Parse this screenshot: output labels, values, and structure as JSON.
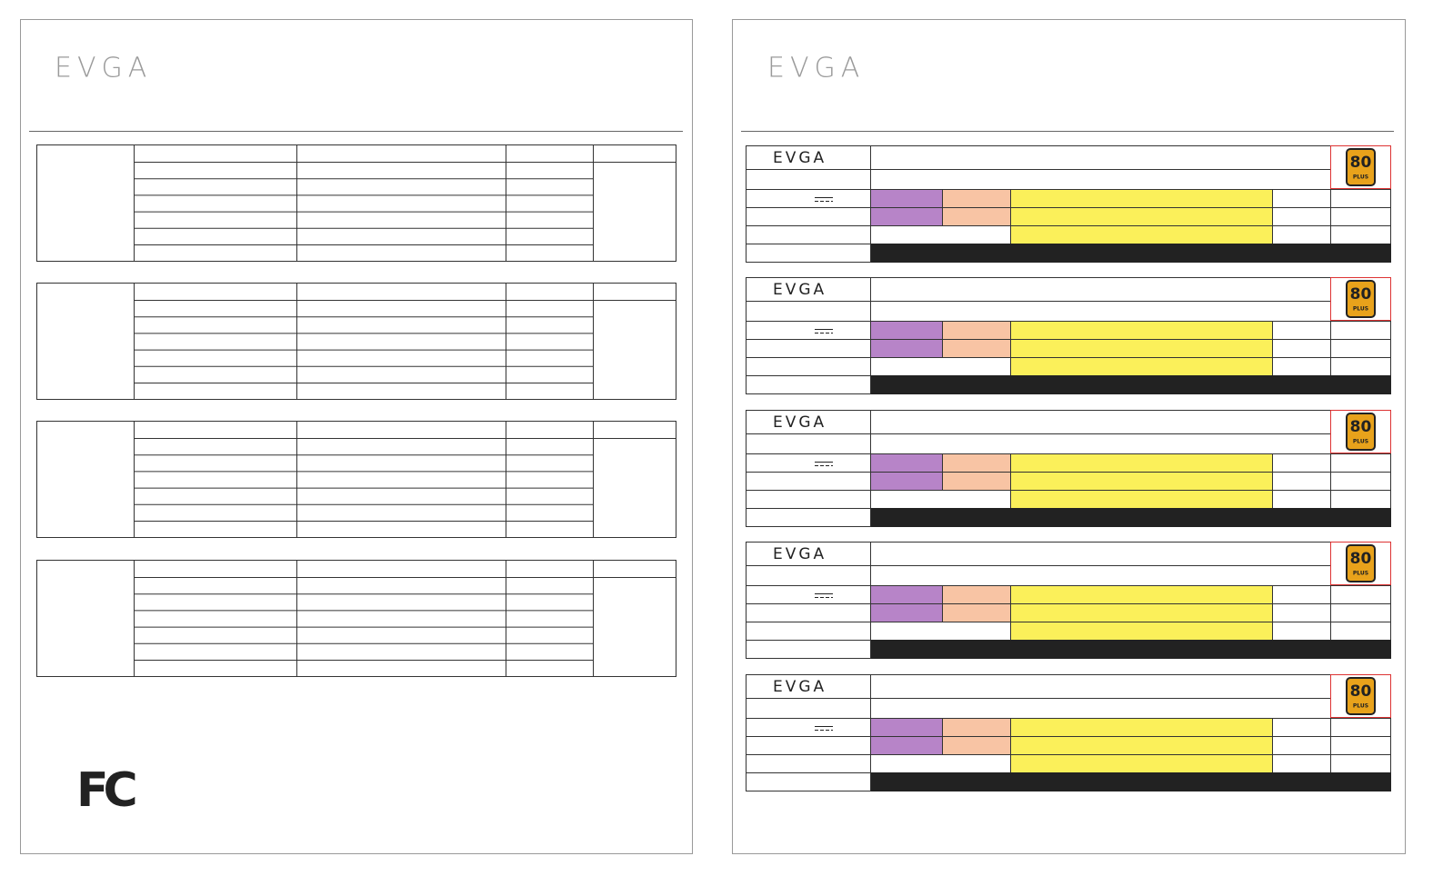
{
  "left_page": {
    "logo": "EVGA",
    "fcc_mark": "FC"
  },
  "right_page": {
    "logo": "EVGA",
    "card_logo": "EVGA",
    "badge_number": "80",
    "badge_text": "PLUS"
  }
}
